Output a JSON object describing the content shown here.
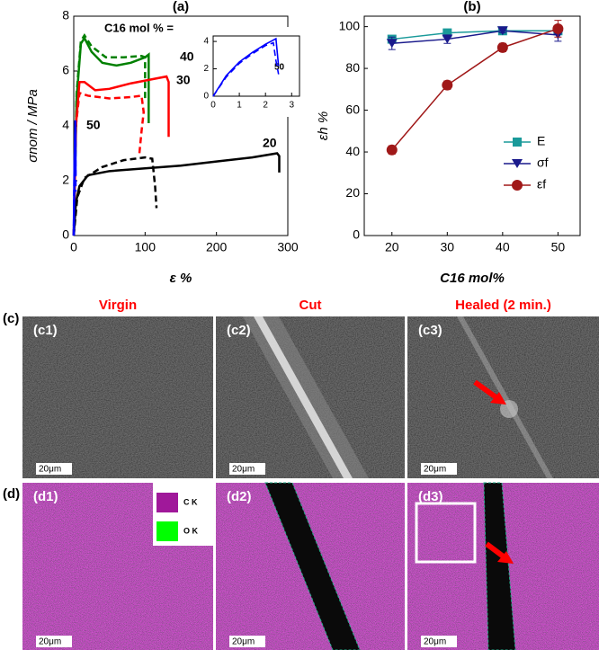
{
  "chart_data": [
    {
      "type": "line",
      "title": "(a)",
      "x_label": "ε %",
      "y_label": "σnom / MPa",
      "annotation": "C16 mol % =",
      "xlim": [
        0,
        300
      ],
      "xticks": [
        0,
        100,
        200,
        300
      ],
      "ylim": [
        0,
        8
      ],
      "yticks": [
        0,
        2,
        4,
        6,
        8
      ],
      "series": [
        {
          "name": "40",
          "color": "#008000",
          "dash": false,
          "x": [
            0,
            4,
            10,
            15,
            25,
            40,
            60,
            80,
            100,
            105,
            105
          ],
          "values": [
            0,
            5,
            7.0,
            7.2,
            6.7,
            6.3,
            6.2,
            6.3,
            6.5,
            6.6,
            4.1
          ]
        },
        {
          "color": "#008000",
          "dash": true,
          "x": [
            0,
            4,
            10,
            15,
            25,
            45,
            70,
            95,
            100,
            100
          ],
          "values": [
            0,
            5.2,
            7.1,
            7.3,
            6.9,
            6.5,
            6.5,
            6.55,
            6.5,
            4.9
          ]
        },
        {
          "name": "30",
          "color": "#ff0000",
          "dash": false,
          "x": [
            0,
            3,
            8,
            15,
            30,
            50,
            80,
            110,
            130,
            133,
            133
          ],
          "values": [
            0,
            4,
            5.6,
            5.6,
            5.3,
            5.35,
            5.55,
            5.7,
            5.8,
            5.6,
            3.6
          ]
        },
        {
          "color": "#ff0000",
          "dash": true,
          "x": [
            0,
            3,
            8,
            20,
            50,
            80,
            95,
            98,
            95,
            92
          ],
          "values": [
            0,
            4,
            5.2,
            5.1,
            5.0,
            5.05,
            5.1,
            4.5,
            3.8,
            3.0
          ]
        },
        {
          "name": "20",
          "color": "#000000",
          "dash": false,
          "x": [
            0,
            3,
            8,
            20,
            50,
            100,
            150,
            200,
            250,
            285,
            288,
            288
          ],
          "values": [
            0,
            1.2,
            1.8,
            2.2,
            2.35,
            2.45,
            2.55,
            2.7,
            2.85,
            3.0,
            2.9,
            2.3
          ]
        },
        {
          "color": "#000000",
          "dash": true,
          "x": [
            0,
            5,
            15,
            40,
            70,
            100,
            110,
            114,
            116
          ],
          "values": [
            0,
            1.4,
            2.1,
            2.5,
            2.75,
            2.85,
            2.8,
            1.8,
            1.0
          ]
        },
        {
          "name": "50",
          "color": "#0000ff",
          "dash": false,
          "x": [
            0,
            1,
            2.3,
            2.5
          ],
          "values": [
            0,
            2.5,
            4.2,
            2.2
          ]
        },
        {
          "color": "#0000ff",
          "dash": true,
          "x": [
            0,
            1,
            2.3,
            2.5
          ],
          "values": [
            0,
            2.4,
            3.9,
            1.6
          ]
        }
      ]
    },
    {
      "type": "line",
      "xlim": [
        0,
        3.3
      ],
      "xticks": [
        0,
        1,
        2,
        3
      ],
      "ylim": [
        0,
        4.4
      ],
      "yticks": [
        0,
        2,
        4
      ],
      "series": [
        {
          "name": "50",
          "color": "#0000ff",
          "dash": false,
          "x": [
            0,
            0.5,
            1,
            1.5,
            2,
            2.4,
            2.5
          ],
          "values": [
            0,
            1.5,
            2.5,
            3.2,
            3.8,
            4.2,
            2.2
          ]
        },
        {
          "color": "#0000ff",
          "dash": true,
          "x": [
            0,
            0.5,
            1,
            1.5,
            2,
            2.3,
            2.4,
            2.5
          ],
          "values": [
            0,
            1.4,
            2.4,
            3.1,
            3.7,
            3.9,
            2.6,
            1.6
          ]
        }
      ]
    },
    {
      "type": "line",
      "title": "(b)",
      "x_label": "C16 mol%",
      "y_label": "εh %",
      "x": [
        20,
        30,
        40,
        50
      ],
      "xlim": [
        15,
        54
      ],
      "xticks": [
        20,
        30,
        40,
        50
      ],
      "ylim": [
        0,
        105
      ],
      "yticks": [
        0,
        20,
        40,
        60,
        80,
        100
      ],
      "series": [
        {
          "name": "E",
          "color": "#1a9a9a",
          "marker": "square",
          "values": [
            94,
            97,
            98,
            98
          ],
          "errors": [
            1,
            1,
            1,
            1
          ]
        },
        {
          "name": "σf",
          "color": "#1a1a8c",
          "marker": "triangle-down",
          "values": [
            92,
            94,
            98,
            96
          ],
          "errors": [
            3,
            2,
            1,
            3
          ]
        },
        {
          "name": "εf",
          "color": "#a01818",
          "marker": "circle",
          "values": [
            41,
            72,
            90,
            99
          ],
          "errors": [
            2,
            2,
            2,
            4
          ]
        }
      ]
    }
  ],
  "panels": {
    "label_c": "(c)",
    "label_d": "(d)",
    "headers": [
      "Virgin",
      "Cut",
      "Healed (2 min.)"
    ],
    "c": [
      "(c1)",
      "(c2)",
      "(c3)"
    ],
    "d": [
      "(d1)",
      "(d2)",
      "(d3)"
    ],
    "scale_bar": "20μm",
    "eds_legend": [
      "C K",
      "O K"
    ]
  }
}
